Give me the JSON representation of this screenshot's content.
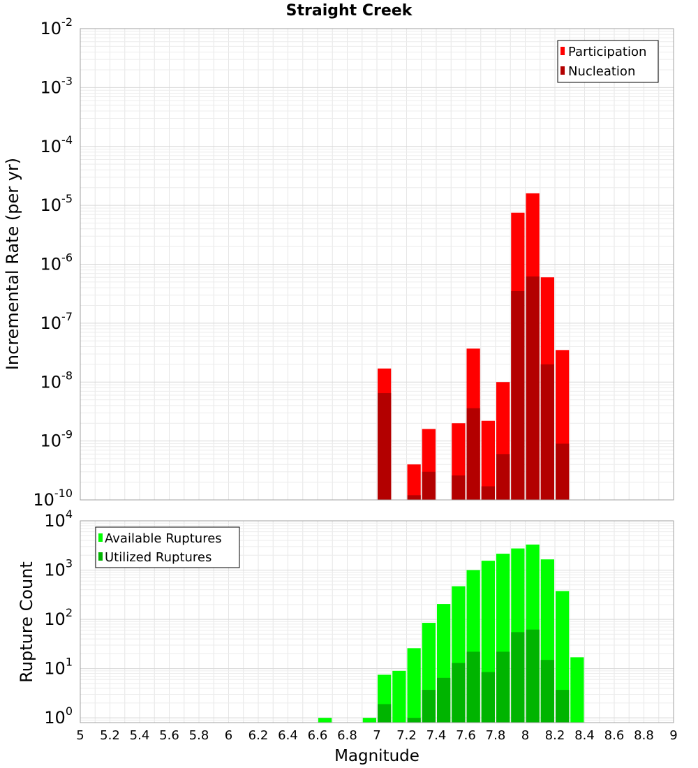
{
  "chart_data": [
    {
      "type": "bar",
      "title": "Straight Creek",
      "ylabel": "Incremental Rate (per yr)",
      "yscale": "log",
      "ylim": [
        1e-10,
        0.01
      ],
      "xlim": [
        5,
        9
      ],
      "bin_width": 0.1,
      "legend_position": "top-right",
      "y_ticks": [
        {
          "base": "10",
          "exp": "-10",
          "value": 1e-10
        },
        {
          "base": "10",
          "exp": "-9",
          "value": 1e-09
        },
        {
          "base": "10",
          "exp": "-8",
          "value": 1e-08
        },
        {
          "base": "10",
          "exp": "-7",
          "value": 1e-07
        },
        {
          "base": "10",
          "exp": "-6",
          "value": 1e-06
        },
        {
          "base": "10",
          "exp": "-5",
          "value": 1e-05
        },
        {
          "base": "10",
          "exp": "-4",
          "value": 0.0001
        },
        {
          "base": "10",
          "exp": "-3",
          "value": 0.001
        },
        {
          "base": "10",
          "exp": "-2",
          "value": 0.01
        }
      ],
      "series": [
        {
          "name": "Participation",
          "color": "#ff0000",
          "points": [
            {
              "x": 7.05,
              "y": 1.7e-08
            },
            {
              "x": 7.25,
              "y": 4e-10
            },
            {
              "x": 7.35,
              "y": 1.6e-09
            },
            {
              "x": 7.55,
              "y": 2e-09
            },
            {
              "x": 7.65,
              "y": 3.7e-08
            },
            {
              "x": 7.75,
              "y": 2.2e-09
            },
            {
              "x": 7.85,
              "y": 1e-08
            },
            {
              "x": 7.95,
              "y": 7.5e-06
            },
            {
              "x": 8.05,
              "y": 1.6e-05
            },
            {
              "x": 8.15,
              "y": 6e-07
            },
            {
              "x": 8.25,
              "y": 3.5e-08
            }
          ]
        },
        {
          "name": "Nucleation",
          "color": "#b30000",
          "points": [
            {
              "x": 7.05,
              "y": 6.5e-09
            },
            {
              "x": 7.25,
              "y": 1.2e-10
            },
            {
              "x": 7.35,
              "y": 3e-10
            },
            {
              "x": 7.55,
              "y": 2.6e-10
            },
            {
              "x": 7.65,
              "y": 3.6e-09
            },
            {
              "x": 7.75,
              "y": 1.7e-10
            },
            {
              "x": 7.85,
              "y": 6e-10
            },
            {
              "x": 7.95,
              "y": 3.5e-07
            },
            {
              "x": 8.05,
              "y": 6.2e-07
            },
            {
              "x": 8.15,
              "y": 2e-08
            },
            {
              "x": 8.25,
              "y": 9e-10
            }
          ]
        }
      ]
    },
    {
      "type": "bar",
      "ylabel": "Rupture Count",
      "xlabel": "Magnitude",
      "yscale": "log",
      "ylim": [
        0.8,
        10000
      ],
      "xlim": [
        5,
        9
      ],
      "bin_width": 0.1,
      "legend_position": "top-left",
      "x_ticks": [
        "5",
        "5.2",
        "5.4",
        "5.6",
        "5.8",
        "6",
        "6.2",
        "6.4",
        "6.6",
        "6.8",
        "7",
        "7.2",
        "7.4",
        "7.6",
        "7.8",
        "8",
        "8.2",
        "8.4",
        "8.6",
        "8.8",
        "9"
      ],
      "y_ticks": [
        {
          "base": "10",
          "exp": "0",
          "value": 1
        },
        {
          "base": "10",
          "exp": "1",
          "value": 10
        },
        {
          "base": "10",
          "exp": "2",
          "value": 100
        },
        {
          "base": "10",
          "exp": "3",
          "value": 1000
        },
        {
          "base": "10",
          "exp": "4",
          "value": 10000
        }
      ],
      "series": [
        {
          "name": "Available Ruptures",
          "color": "#00ff00",
          "points": [
            {
              "x": 6.65,
              "y": 1
            },
            {
              "x": 6.95,
              "y": 1
            },
            {
              "x": 7.05,
              "y": 7.5
            },
            {
              "x": 7.15,
              "y": 9
            },
            {
              "x": 7.25,
              "y": 26
            },
            {
              "x": 7.35,
              "y": 85
            },
            {
              "x": 7.45,
              "y": 205
            },
            {
              "x": 7.55,
              "y": 470
            },
            {
              "x": 7.65,
              "y": 1000
            },
            {
              "x": 7.75,
              "y": 1550
            },
            {
              "x": 7.85,
              "y": 2150
            },
            {
              "x": 7.95,
              "y": 2750
            },
            {
              "x": 8.05,
              "y": 3300
            },
            {
              "x": 8.15,
              "y": 1650
            },
            {
              "x": 8.25,
              "y": 375
            },
            {
              "x": 8.35,
              "y": 17
            }
          ]
        },
        {
          "name": "Utilized Ruptures",
          "color": "#00b400",
          "points": [
            {
              "x": 7.05,
              "y": 1.9
            },
            {
              "x": 7.25,
              "y": 1
            },
            {
              "x": 7.35,
              "y": 3.7
            },
            {
              "x": 7.45,
              "y": 6.5
            },
            {
              "x": 7.55,
              "y": 13
            },
            {
              "x": 7.65,
              "y": 22
            },
            {
              "x": 7.75,
              "y": 8.5
            },
            {
              "x": 7.85,
              "y": 22
            },
            {
              "x": 7.95,
              "y": 55
            },
            {
              "x": 8.05,
              "y": 62
            },
            {
              "x": 8.15,
              "y": 15
            },
            {
              "x": 8.25,
              "y": 3.7
            }
          ]
        }
      ]
    }
  ]
}
